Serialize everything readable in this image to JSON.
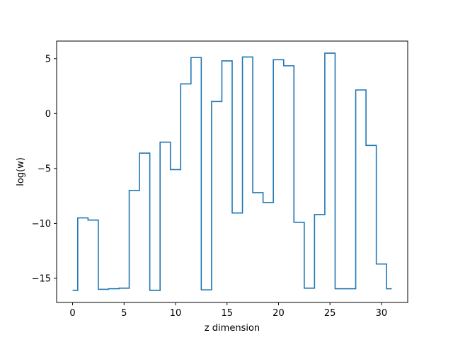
{
  "chart_data": {
    "type": "line",
    "drawstyle": "steps-mid",
    "title": "",
    "xlabel": "z dimension",
    "ylabel": "log(w)",
    "xlim": [
      -1.55,
      32.55
    ],
    "ylim": [
      -17.2,
      6.6
    ],
    "xticks": [
      0,
      5,
      10,
      15,
      20,
      25,
      30
    ],
    "yticks": [
      -15,
      -10,
      -5,
      0,
      5
    ],
    "ytick_labels": [
      "−15",
      "−10",
      "−5",
      "0",
      "5"
    ],
    "grid": false,
    "legend": "none",
    "series": [
      {
        "color": "#1f77b4",
        "x": [
          0,
          1,
          2,
          3,
          4,
          5,
          6,
          7,
          8,
          9,
          10,
          11,
          12,
          13,
          14,
          15,
          16,
          17,
          18,
          19,
          20,
          21,
          22,
          23,
          24,
          25,
          26,
          27,
          28,
          29,
          30,
          31
        ],
        "y": [
          -16.1,
          -9.5,
          -9.7,
          -16.0,
          -15.95,
          -15.9,
          -7.0,
          -3.6,
          -16.1,
          -2.6,
          -5.1,
          2.7,
          5.1,
          -16.05,
          1.1,
          4.8,
          -9.05,
          5.15,
          -7.2,
          -8.1,
          4.9,
          4.35,
          -9.9,
          -15.9,
          -9.2,
          5.5,
          -15.95,
          -15.95,
          2.15,
          -2.9,
          -13.7,
          -15.95
        ]
      }
    ]
  }
}
